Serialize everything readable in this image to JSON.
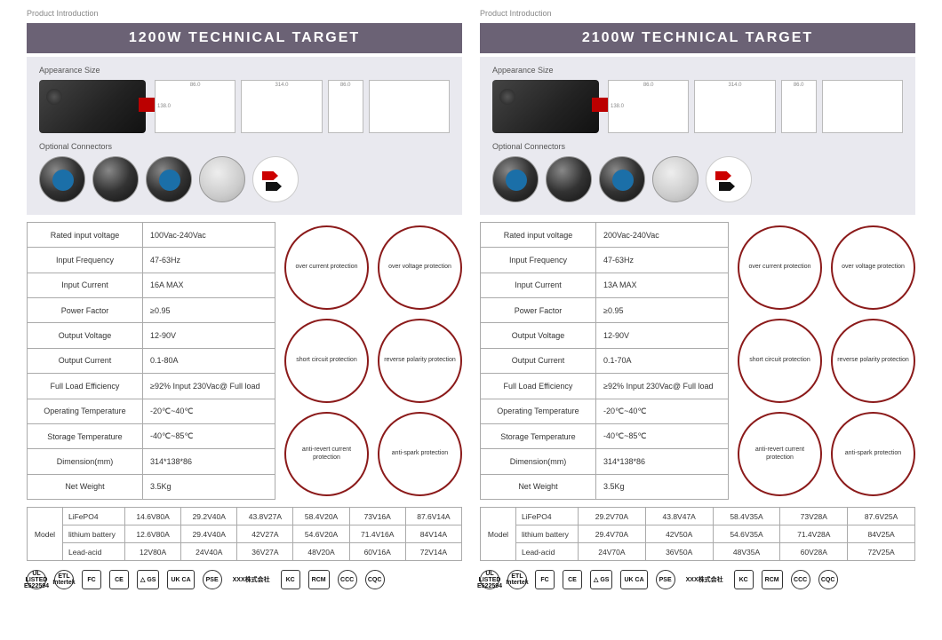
{
  "header_label": "Product Introduction",
  "pages": [
    {
      "title": "1200W  TECHNICAL TARGET",
      "appearance_label": "Appearance Size",
      "connectors_label": "Optional  Connectors",
      "specs": [
        {
          "k": "Rated input voltage",
          "v": "100Vac-240Vac"
        },
        {
          "k": "Input Frequency",
          "v": "47-63Hz"
        },
        {
          "k": "Input Current",
          "v": "16A MAX"
        },
        {
          "k": "Power Factor",
          "v": "≥0.95"
        },
        {
          "k": "Output Voltage",
          "v": "12-90V"
        },
        {
          "k": "Output Current",
          "v": "0.1-80A"
        },
        {
          "k": "Full Load Efficiency",
          "v": "≥92% Input 230Vac@ Full load"
        },
        {
          "k": "Operating Temperature",
          "v": "-20℃~40℃"
        },
        {
          "k": "Storage Temperature",
          "v": "-40℃~85℃"
        },
        {
          "k": "Dimension(mm)",
          "v": "314*138*86"
        },
        {
          "k": "Net Weight",
          "v": "3.5Kg"
        }
      ],
      "protections": [
        "over current protection",
        "over voltage protection",
        "short circuit protection",
        "reverse polarity protection",
        "anti-revert current protection",
        "anti-spark protection"
      ],
      "model_label": "Model",
      "model_rows": [
        {
          "type": "LiFePO4",
          "vals": [
            "14.6V80A",
            "29.2V40A",
            "43.8V27A",
            "58.4V20A",
            "73V16A",
            "87.6V14A"
          ]
        },
        {
          "type": "lithium battery",
          "vals": [
            "12.6V80A",
            "29.4V40A",
            "42V27A",
            "54.6V20A",
            "71.4V16A",
            "84V14A"
          ]
        },
        {
          "type": "Lead-acid",
          "vals": [
            "12V80A",
            "24V40A",
            "36V27A",
            "48V20A",
            "60V16A",
            "72V14A"
          ]
        }
      ]
    },
    {
      "title": "2100W  TECHNICAL TARGET",
      "appearance_label": "Appearance Size",
      "connectors_label": "Optional  Connectors",
      "specs": [
        {
          "k": "Rated input voltage",
          "v": "200Vac-240Vac"
        },
        {
          "k": "Input Frequency",
          "v": "47-63Hz"
        },
        {
          "k": "Input Current",
          "v": "13A MAX"
        },
        {
          "k": "Power Factor",
          "v": "≥0.95"
        },
        {
          "k": "Output Voltage",
          "v": "12-90V"
        },
        {
          "k": "Output Current",
          "v": "0.1-70A"
        },
        {
          "k": "Full Load Efficiency",
          "v": "≥92% Input 230Vac@ Full load"
        },
        {
          "k": "Operating Temperature",
          "v": "-20℃~40℃"
        },
        {
          "k": "Storage Temperature",
          "v": "-40℃~85℃"
        },
        {
          "k": "Dimension(mm)",
          "v": "314*138*86"
        },
        {
          "k": "Net Weight",
          "v": "3.5Kg"
        }
      ],
      "protections": [
        "over current protection",
        "over voltage protection",
        "short circuit protection",
        "reverse polarity protection",
        "anti-revert current protection",
        "anti-spark protection"
      ],
      "model_label": "Model",
      "model_rows": [
        {
          "type": "LiFePO4",
          "vals": [
            "29.2V70A",
            "43.8V47A",
            "58.4V35A",
            "73V28A",
            "87.6V25A"
          ]
        },
        {
          "type": "lithium battery",
          "vals": [
            "29.4V70A",
            "42V50A",
            "54.6V35A",
            "71.4V28A",
            "84V25A"
          ]
        },
        {
          "type": "Lead-acid",
          "vals": [
            "24V70A",
            "36V50A",
            "48V35A",
            "60V28A",
            "72V25A"
          ]
        }
      ]
    }
  ],
  "certifications": [
    {
      "label": "UL LISTED E522594",
      "round": true
    },
    {
      "label": "ETL Intertek",
      "round": true
    },
    {
      "label": "FC"
    },
    {
      "label": "CE"
    },
    {
      "label": "△ GS"
    },
    {
      "label": "UK CA"
    },
    {
      "label": "PSE",
      "round": true
    },
    {
      "label": "XXX株式会社",
      "noborder": true
    },
    {
      "label": "KC"
    },
    {
      "label": "RCM"
    },
    {
      "label": "CCC",
      "round": true
    },
    {
      "label": "CQC",
      "round": true
    }
  ],
  "dimensions": {
    "side": "86.0",
    "width": "314.0",
    "height": "138.0"
  },
  "colors": {
    "title_bg": "#6b6275",
    "appearance_bg": "#e9e9ef",
    "circle_border": "#8b1a1a",
    "table_border": "#aaaaaa"
  }
}
